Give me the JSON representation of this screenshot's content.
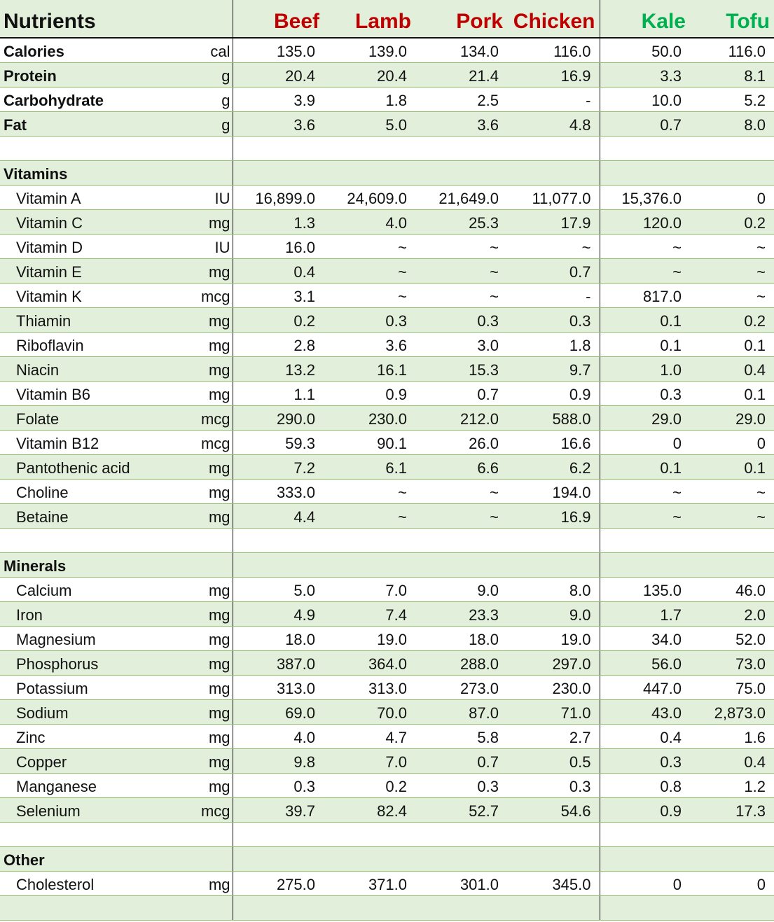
{
  "header": {
    "title": "Nutrients",
    "columns": [
      {
        "label": "Beef",
        "color": "#c00000"
      },
      {
        "label": "Lamb",
        "color": "#c00000"
      },
      {
        "label": "Pork",
        "color": "#c00000"
      },
      {
        "label": "Chicken",
        "color": "#c00000"
      },
      {
        "label": "Kale",
        "color": "#00b050"
      },
      {
        "label": "Tofu",
        "color": "#00b050"
      }
    ]
  },
  "rows": [
    {
      "label": "Calories",
      "bold": true,
      "unit": "cal",
      "values": [
        "135.0",
        "139.0",
        "134.0",
        "116.0",
        "50.0",
        "116.0"
      ]
    },
    {
      "label": "Protein",
      "bold": true,
      "unit": "g",
      "values": [
        "20.4",
        "20.4",
        "21.4",
        "16.9",
        "3.3",
        "8.1"
      ]
    },
    {
      "label": "Carbohydrate",
      "bold": true,
      "unit": "g",
      "values": [
        "3.9",
        "1.8",
        "2.5",
        "-",
        "10.0",
        "5.2"
      ]
    },
    {
      "label": "Fat",
      "bold": true,
      "unit": "g",
      "values": [
        "3.6",
        "5.0",
        "3.6",
        "4.8",
        "0.7",
        "8.0"
      ]
    },
    {
      "label": "",
      "unit": "",
      "values": [
        "",
        "",
        "",
        "",
        "",
        ""
      ]
    },
    {
      "label": "Vitamins",
      "bold": true,
      "unit": "",
      "values": [
        "",
        "",
        "",
        "",
        "",
        ""
      ]
    },
    {
      "label": "Vitamin A",
      "unit": "IU",
      "values": [
        "16,899.0",
        "24,609.0",
        "21,649.0",
        "11,077.0",
        "15,376.0",
        "0"
      ]
    },
    {
      "label": "Vitamin C",
      "unit": "mg",
      "values": [
        "1.3",
        "4.0",
        "25.3",
        "17.9",
        "120.0",
        "0.2"
      ]
    },
    {
      "label": "Vitamin D",
      "unit": "IU",
      "values": [
        "16.0",
        "~",
        "~",
        "~",
        "~",
        "~"
      ]
    },
    {
      "label": "Vitamin E",
      "unit": "mg",
      "values": [
        "0.4",
        "~",
        "~",
        "0.7",
        "~",
        "~"
      ]
    },
    {
      "label": "Vitamin K",
      "unit": "mcg",
      "values": [
        "3.1",
        "~",
        "~",
        "-",
        "817.0",
        "~"
      ]
    },
    {
      "label": "Thiamin",
      "unit": "mg",
      "values": [
        "0.2",
        "0.3",
        "0.3",
        "0.3",
        "0.1",
        "0.2"
      ]
    },
    {
      "label": "Riboflavin",
      "unit": "mg",
      "values": [
        "2.8",
        "3.6",
        "3.0",
        "1.8",
        "0.1",
        "0.1"
      ]
    },
    {
      "label": "Niacin",
      "unit": "mg",
      "values": [
        "13.2",
        "16.1",
        "15.3",
        "9.7",
        "1.0",
        "0.4"
      ]
    },
    {
      "label": "Vitamin B6",
      "unit": "mg",
      "values": [
        "1.1",
        "0.9",
        "0.7",
        "0.9",
        "0.3",
        "0.1"
      ]
    },
    {
      "label": "Folate",
      "unit": "mcg",
      "values": [
        "290.0",
        "230.0",
        "212.0",
        "588.0",
        "29.0",
        "29.0"
      ]
    },
    {
      "label": "Vitamin B12",
      "unit": "mcg",
      "values": [
        "59.3",
        "90.1",
        "26.0",
        "16.6",
        "0",
        "0"
      ]
    },
    {
      "label": "Pantothenic acid",
      "unit": "mg",
      "values": [
        "7.2",
        "6.1",
        "6.6",
        "6.2",
        "0.1",
        "0.1"
      ]
    },
    {
      "label": "Choline",
      "unit": "mg",
      "values": [
        "333.0",
        "~",
        "~",
        "194.0",
        "~",
        "~"
      ]
    },
    {
      "label": "Betaine",
      "unit": "mg",
      "values": [
        "4.4",
        "~",
        "~",
        "16.9",
        "~",
        "~"
      ]
    },
    {
      "label": "",
      "unit": "",
      "values": [
        "",
        "",
        "",
        "",
        "",
        ""
      ]
    },
    {
      "label": "Minerals",
      "bold": true,
      "unit": "",
      "values": [
        "",
        "",
        "",
        "",
        "",
        ""
      ]
    },
    {
      "label": "Calcium",
      "unit": "mg",
      "values": [
        "5.0",
        "7.0",
        "9.0",
        "8.0",
        "135.0",
        "46.0"
      ]
    },
    {
      "label": "Iron",
      "unit": "mg",
      "values": [
        "4.9",
        "7.4",
        "23.3",
        "9.0",
        "1.7",
        "2.0"
      ]
    },
    {
      "label": "Magnesium",
      "unit": "mg",
      "values": [
        "18.0",
        "19.0",
        "18.0",
        "19.0",
        "34.0",
        "52.0"
      ]
    },
    {
      "label": "Phosphorus",
      "unit": "mg",
      "values": [
        "387.0",
        "364.0",
        "288.0",
        "297.0",
        "56.0",
        "73.0"
      ]
    },
    {
      "label": "Potassium",
      "unit": "mg",
      "values": [
        "313.0",
        "313.0",
        "273.0",
        "230.0",
        "447.0",
        "75.0"
      ]
    },
    {
      "label": "Sodium",
      "unit": "mg",
      "values": [
        "69.0",
        "70.0",
        "87.0",
        "71.0",
        "43.0",
        "2,873.0"
      ]
    },
    {
      "label": "Zinc",
      "unit": "mg",
      "values": [
        "4.0",
        "4.7",
        "5.8",
        "2.7",
        "0.4",
        "1.6"
      ]
    },
    {
      "label": "Copper",
      "unit": "mg",
      "values": [
        "9.8",
        "7.0",
        "0.7",
        "0.5",
        "0.3",
        "0.4"
      ]
    },
    {
      "label": "Manganese",
      "unit": "mg",
      "values": [
        "0.3",
        "0.2",
        "0.3",
        "0.3",
        "0.8",
        "1.2"
      ]
    },
    {
      "label": "Selenium",
      "unit": "mcg",
      "values": [
        "39.7",
        "82.4",
        "52.7",
        "54.6",
        "0.9",
        "17.3"
      ]
    },
    {
      "label": "",
      "unit": "",
      "values": [
        "",
        "",
        "",
        "",
        "",
        ""
      ]
    },
    {
      "label": "Other",
      "bold": true,
      "unit": "",
      "values": [
        "",
        "",
        "",
        "",
        "",
        ""
      ]
    },
    {
      "label": "Cholesterol",
      "unit": "mg",
      "values": [
        "275.0",
        "371.0",
        "301.0",
        "345.0",
        "0",
        "0"
      ]
    },
    {
      "label": "",
      "unit": "",
      "values": [
        "",
        "",
        "",
        "",
        "",
        ""
      ]
    }
  ]
}
